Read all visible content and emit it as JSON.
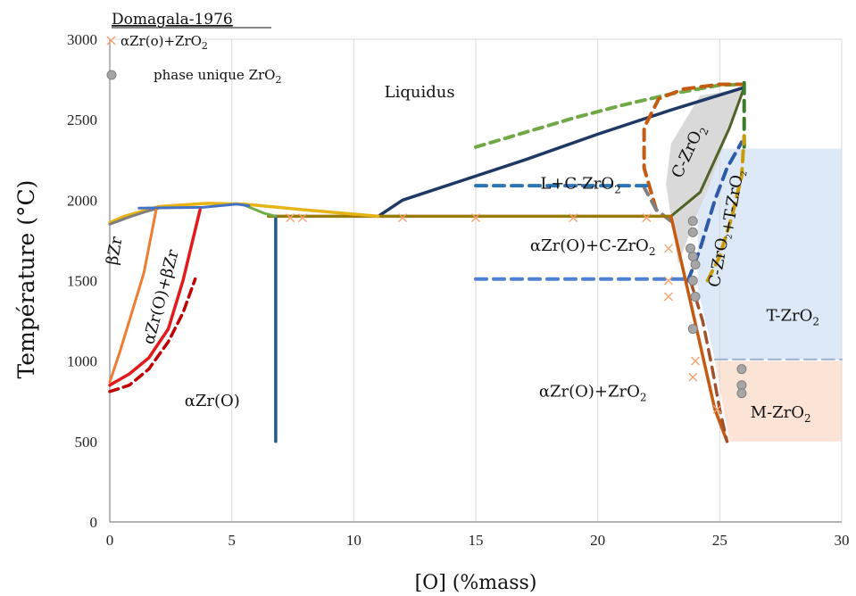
{
  "chart_data": {
    "type": "line",
    "source": "Domagala-1976",
    "xlabel": "[O] (%mass)",
    "ylabel": "Température (°C)",
    "xlim": [
      0,
      30
    ],
    "ylim": [
      0,
      3000
    ],
    "xticks": [
      0,
      5,
      10,
      15,
      20,
      25,
      30
    ],
    "yticks": [
      0,
      500,
      1000,
      1500,
      2000,
      2500,
      3000
    ],
    "grid": "vertical",
    "legend": [
      {
        "label": "αZr(o)+ZrO2",
        "marker": "x",
        "color": "#f4a270"
      },
      {
        "label": "phase unique ZrO2",
        "marker": "circle",
        "color": "#a6a6a6"
      }
    ],
    "region_labels": [
      {
        "text": "Liquidus",
        "x": 12.7,
        "y": 2640
      },
      {
        "text": "L+C-ZrO2",
        "x": 19.3,
        "y": 2070
      },
      {
        "text": "C-ZrO2",
        "x": 23.9,
        "y": 2290,
        "rotate": -65
      },
      {
        "text": "C-ZrO2+T-ZrO2",
        "x": 25.4,
        "y": 1820,
        "rotate": -80,
        "small": true
      },
      {
        "text": "αZr(O)+C-ZrO2",
        "x": 19.8,
        "y": 1685
      },
      {
        "text": "βZr",
        "x": 0.4,
        "y": 1680,
        "rotate": -80
      },
      {
        "text": "αZr(O)+βZr",
        "x": 2.3,
        "y": 1390,
        "rotate": -75
      },
      {
        "text": "T-ZrO2",
        "x": 28.0,
        "y": 1250
      },
      {
        "text": "αZr(O)+ZrO2",
        "x": 19.8,
        "y": 780
      },
      {
        "text": "αZr(O)",
        "x": 4.2,
        "y": 720
      },
      {
        "text": "M-ZrO2",
        "x": 27.5,
        "y": 650
      }
    ],
    "shaded": [
      {
        "name": "T-ZrO2 domain",
        "color": "#dde9f6",
        "points": [
          [
            24.1,
            2320
          ],
          [
            30,
            2320
          ],
          [
            30,
            1010
          ],
          [
            24.8,
            1010
          ],
          [
            24.1,
            1450
          ]
        ]
      },
      {
        "name": "M-ZrO2 domain",
        "color": "#fbe3d5",
        "points": [
          [
            24.8,
            1000
          ],
          [
            30,
            1000
          ],
          [
            30,
            500
          ],
          [
            25.4,
            500
          ]
        ]
      },
      {
        "name": "C-ZrO2 domain",
        "color": "#d9d9d9",
        "points": [
          [
            23,
            2350
          ],
          [
            24.2,
            2650
          ],
          [
            25.8,
            2690
          ],
          [
            26,
            2700
          ],
          [
            24.6,
            2100
          ],
          [
            23.9,
            1850
          ],
          [
            23.3,
            1600
          ],
          [
            23,
            1900
          ],
          [
            22.8,
            2100
          ]
        ]
      }
    ],
    "series": [
      {
        "color": "#1f3864",
        "width": 3.5,
        "dash": "",
        "points": [
          [
            11,
            1900
          ],
          [
            12,
            2000
          ],
          [
            14,
            2100
          ],
          [
            17,
            2250
          ],
          [
            20,
            2410
          ],
          [
            23,
            2560
          ],
          [
            26,
            2700
          ]
        ]
      },
      {
        "color": "#70a845",
        "width": 4,
        "dash": "10,7",
        "points": [
          [
            15,
            2330
          ],
          [
            17,
            2420
          ],
          [
            19,
            2510
          ],
          [
            21,
            2590
          ],
          [
            23,
            2660
          ],
          [
            25,
            2715
          ],
          [
            26,
            2720
          ]
        ]
      },
      {
        "color": "#c55a11",
        "width": 4,
        "dash": "12,8",
        "points": [
          [
            22.4,
            1940
          ],
          [
            21.9,
            2200
          ],
          [
            21.9,
            2450
          ],
          [
            22.5,
            2630
          ],
          [
            23.5,
            2690
          ],
          [
            25,
            2720
          ],
          [
            25.9,
            2720
          ]
        ]
      },
      {
        "color": "#808080",
        "width": 4,
        "dash": "12,8",
        "points": [
          [
            23,
            1870
          ],
          [
            22.4,
            1940
          ],
          [
            21.9,
            2080
          ]
        ]
      },
      {
        "color": "#4f6228",
        "width": 3,
        "dash": "",
        "points": [
          [
            23,
            1900
          ],
          [
            24.2,
            2050
          ],
          [
            25.4,
            2450
          ],
          [
            26,
            2700
          ]
        ]
      },
      {
        "color": "#3a7d2a",
        "width": 4,
        "dash": "12,8",
        "points": [
          [
            26,
            2730
          ],
          [
            26,
            2300
          ]
        ]
      },
      {
        "color": "#2e5aa8",
        "width": 4,
        "dash": "12,8",
        "points": [
          [
            23.7,
            1500
          ],
          [
            24.2,
            1700
          ],
          [
            24.8,
            2000
          ],
          [
            25.3,
            2200
          ],
          [
            25.9,
            2360
          ]
        ]
      },
      {
        "color": "#c99d0a",
        "width": 4,
        "dash": "12,8",
        "points": [
          [
            24.5,
            1500
          ],
          [
            25,
            1650
          ],
          [
            25.5,
            1900
          ],
          [
            25.9,
            2150
          ],
          [
            26,
            2400
          ]
        ]
      },
      {
        "color": "#9a7b0a",
        "width": 3.5,
        "dash": "",
        "points": [
          [
            6.5,
            1900
          ],
          [
            23,
            1900
          ]
        ]
      },
      {
        "color": "#2e75b6",
        "width": 4,
        "dash": "12,8",
        "points": [
          [
            15,
            2090
          ],
          [
            22,
            2090
          ]
        ]
      },
      {
        "color": "#4f7fd0",
        "width": 4,
        "dash": "12,8",
        "points": [
          [
            15,
            1510
          ],
          [
            23.7,
            1510
          ]
        ]
      },
      {
        "color": "#a1b3cf",
        "width": 2,
        "dash": "14,6",
        "points": [
          [
            24.8,
            1010
          ],
          [
            30,
            1010
          ]
        ]
      },
      {
        "color": "#1f5c8c",
        "width": 3.5,
        "dash": "",
        "points": [
          [
            6.8,
            1900
          ],
          [
            6.8,
            500
          ]
        ]
      },
      {
        "color": "#c55a11",
        "width": 3.5,
        "dash": "",
        "points": [
          [
            23,
            1900
          ],
          [
            23.6,
            1500
          ],
          [
            24.2,
            1100
          ],
          [
            24.8,
            700
          ],
          [
            25.3,
            500
          ]
        ]
      },
      {
        "color": "#a0522d",
        "width": 3.5,
        "dash": "12,8",
        "points": [
          [
            23.8,
            1500
          ],
          [
            24.3,
            1250
          ],
          [
            24.7,
            950
          ],
          [
            25,
            700
          ],
          [
            25.3,
            500
          ]
        ]
      },
      {
        "color": "#70ad47",
        "width": 3,
        "dash": "",
        "points": [
          [
            5.5,
            1970
          ],
          [
            6.3,
            1920
          ],
          [
            6.8,
            1900
          ]
        ]
      },
      {
        "color": "#e6b414",
        "width": 3.5,
        "dash": "",
        "points": [
          [
            0,
            1860
          ],
          [
            0.6,
            1900
          ],
          [
            2,
            1960
          ],
          [
            4,
            1980
          ],
          [
            5.5,
            1975
          ],
          [
            8,
            1940
          ],
          [
            11,
            1900
          ]
        ]
      },
      {
        "color": "#7f7f7f",
        "width": 3,
        "dash": "",
        "points": [
          [
            0,
            1850
          ],
          [
            0.7,
            1890
          ],
          [
            1.5,
            1930
          ],
          [
            2,
            1950
          ]
        ]
      },
      {
        "color": "#4472c4",
        "width": 3,
        "dash": "",
        "points": [
          [
            1.2,
            1950
          ],
          [
            3.8,
            1955
          ],
          [
            5.2,
            1975
          ],
          [
            5.7,
            1965
          ]
        ]
      },
      {
        "color": "#ed7d31",
        "width": 3,
        "dash": "",
        "points": [
          [
            0,
            870
          ],
          [
            0.4,
            1050
          ],
          [
            0.8,
            1250
          ],
          [
            1.4,
            1550
          ],
          [
            1.9,
            1940
          ]
        ]
      },
      {
        "color": "#e31a1c",
        "width": 3.5,
        "dash": "",
        "points": [
          [
            0,
            850
          ],
          [
            0.8,
            920
          ],
          [
            1.6,
            1020
          ],
          [
            2.4,
            1200
          ],
          [
            3,
            1500
          ],
          [
            3.7,
            1940
          ]
        ]
      },
      {
        "color": "#c00000",
        "width": 3.5,
        "dash": "10,6",
        "points": [
          [
            0,
            810
          ],
          [
            0.8,
            850
          ],
          [
            1.6,
            950
          ],
          [
            2.4,
            1120
          ],
          [
            3,
            1300
          ],
          [
            3.5,
            1510
          ]
        ]
      }
    ],
    "cross_points": [
      [
        7.4,
        1890
      ],
      [
        7.9,
        1890
      ],
      [
        12.0,
        1890
      ],
      [
        15.0,
        1890
      ],
      [
        19.0,
        1890
      ],
      [
        22.0,
        1890
      ],
      [
        22.9,
        1700
      ],
      [
        22.9,
        1500
      ],
      [
        22.9,
        1400
      ],
      [
        24.0,
        1000
      ],
      [
        23.9,
        900
      ],
      [
        24.9,
        700
      ]
    ],
    "circle_points": [
      [
        23.9,
        1870
      ],
      [
        23.9,
        1800
      ],
      [
        23.8,
        1700
      ],
      [
        23.9,
        1650
      ],
      [
        24.0,
        1600
      ],
      [
        23.9,
        1500
      ],
      [
        24.0,
        1400
      ],
      [
        23.9,
        1200
      ],
      [
        25.9,
        950
      ],
      [
        25.9,
        850
      ],
      [
        25.9,
        800
      ]
    ]
  }
}
